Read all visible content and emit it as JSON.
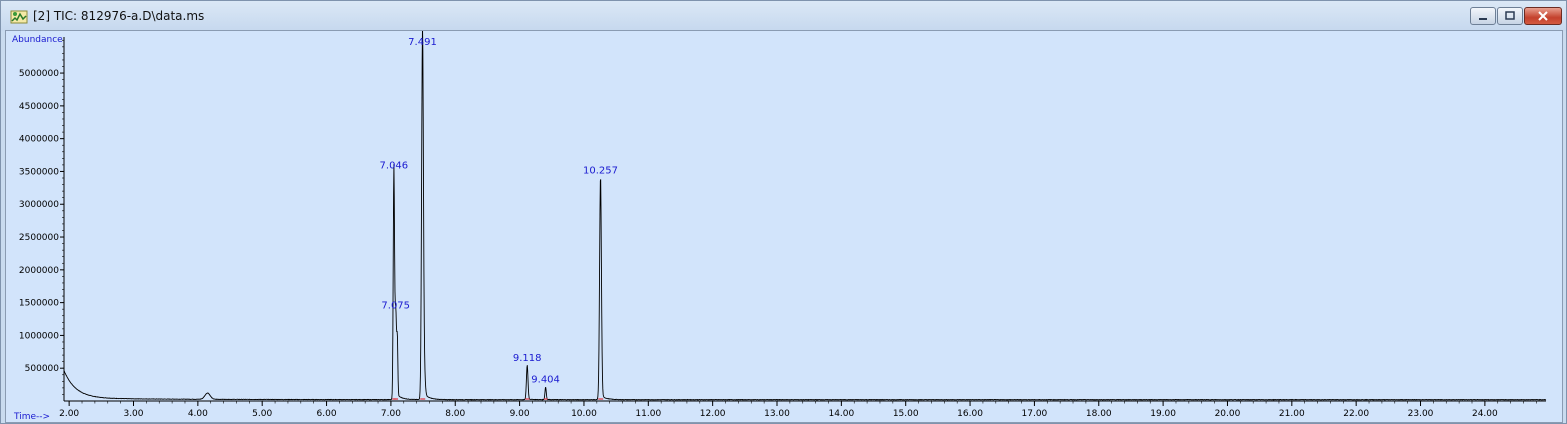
{
  "window": {
    "title": "[2] TIC: 812976-a.D\\data.ms",
    "app_icon": "chromatogram-app-icon",
    "controls": [
      "minimize-icon",
      "maximize-icon",
      "close-icon"
    ],
    "colors": {
      "plot_background": "#d2e4fb",
      "trace": "#000000",
      "label": "#1a1ad0",
      "baseline_marker": "#e0303a"
    }
  },
  "chart_data": {
    "type": "line",
    "ylabel": "Abundance",
    "xlabel": "Time-->",
    "xlim": [
      1.92,
      24.95
    ],
    "ylim": [
      0,
      5550000
    ],
    "x_ticks": [
      "2.00",
      "3.00",
      "4.00",
      "5.00",
      "6.00",
      "7.00",
      "8.00",
      "9.00",
      "10.00",
      "11.00",
      "12.00",
      "13.00",
      "14.00",
      "15.00",
      "16.00",
      "17.00",
      "18.00",
      "19.00",
      "20.00",
      "21.00",
      "22.00",
      "23.00",
      "24.00"
    ],
    "y_ticks": [
      "500000",
      "1000000",
      "1500000",
      "2000000",
      "2500000",
      "3000000",
      "3500000",
      "4000000",
      "4500000",
      "5000000"
    ],
    "peaks": [
      {
        "label": "7.046",
        "rt": 7.046,
        "abundance": 3450000,
        "width": 0.01
      },
      {
        "label": "7.075",
        "rt": 7.075,
        "abundance": 1320000,
        "width": 0.012
      },
      {
        "label": "7.491",
        "rt": 7.491,
        "abundance": 5550000,
        "width": 0.014
      },
      {
        "label": "9.118",
        "rt": 9.118,
        "abundance": 520000,
        "width": 0.012
      },
      {
        "label": "9.404",
        "rt": 9.404,
        "abundance": 190000,
        "width": 0.01
      },
      {
        "label": "10.257",
        "rt": 10.257,
        "abundance": 3380000,
        "width": 0.014
      }
    ],
    "minor_peaks": [
      {
        "rt": 4.15,
        "abundance": 95000,
        "width": 0.04
      },
      {
        "rt": 7.1,
        "abundance": 800000,
        "width": 0.008
      },
      {
        "rt": 7.52,
        "abundance": 300000,
        "width": 0.015
      }
    ]
  }
}
